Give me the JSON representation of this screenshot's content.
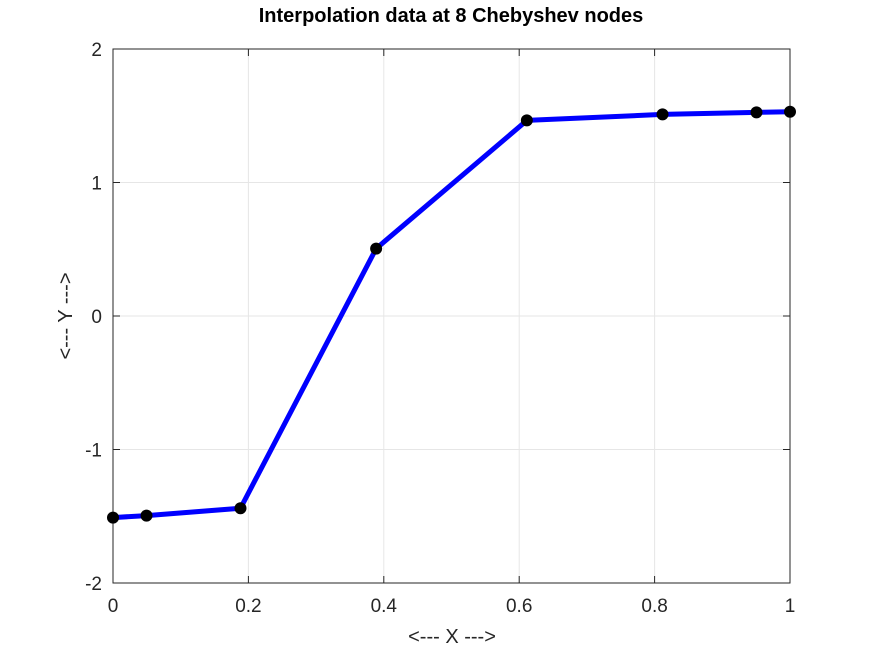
{
  "chart_data": {
    "type": "line",
    "title": "Interpolation data at 8 Chebyshev nodes",
    "xlabel": "<--- X --->",
    "ylabel": "<--- Y --->",
    "xlim": [
      0,
      1
    ],
    "ylim": [
      -2,
      2
    ],
    "xticks": [
      "0",
      "0.2",
      "0.4",
      "0.6",
      "0.8",
      "1"
    ],
    "xtick_values": [
      0,
      0.2,
      0.4,
      0.6,
      0.8,
      1
    ],
    "yticks": [
      "-2",
      "-1",
      "0",
      "1",
      "2"
    ],
    "ytick_values": [
      -2,
      -1,
      0,
      1,
      2
    ],
    "grid": true,
    "series": [
      {
        "x": [
          0,
          0.0495,
          0.1883,
          0.3887,
          0.6113,
          0.8117,
          0.9505,
          1.0
        ],
        "y": [
          -1.51,
          -1.495,
          -1.44,
          0.505,
          1.465,
          1.51,
          1.525,
          1.53
        ],
        "line_color": "#0000ff",
        "marker_color": "#000000",
        "marker": "circle"
      }
    ]
  }
}
